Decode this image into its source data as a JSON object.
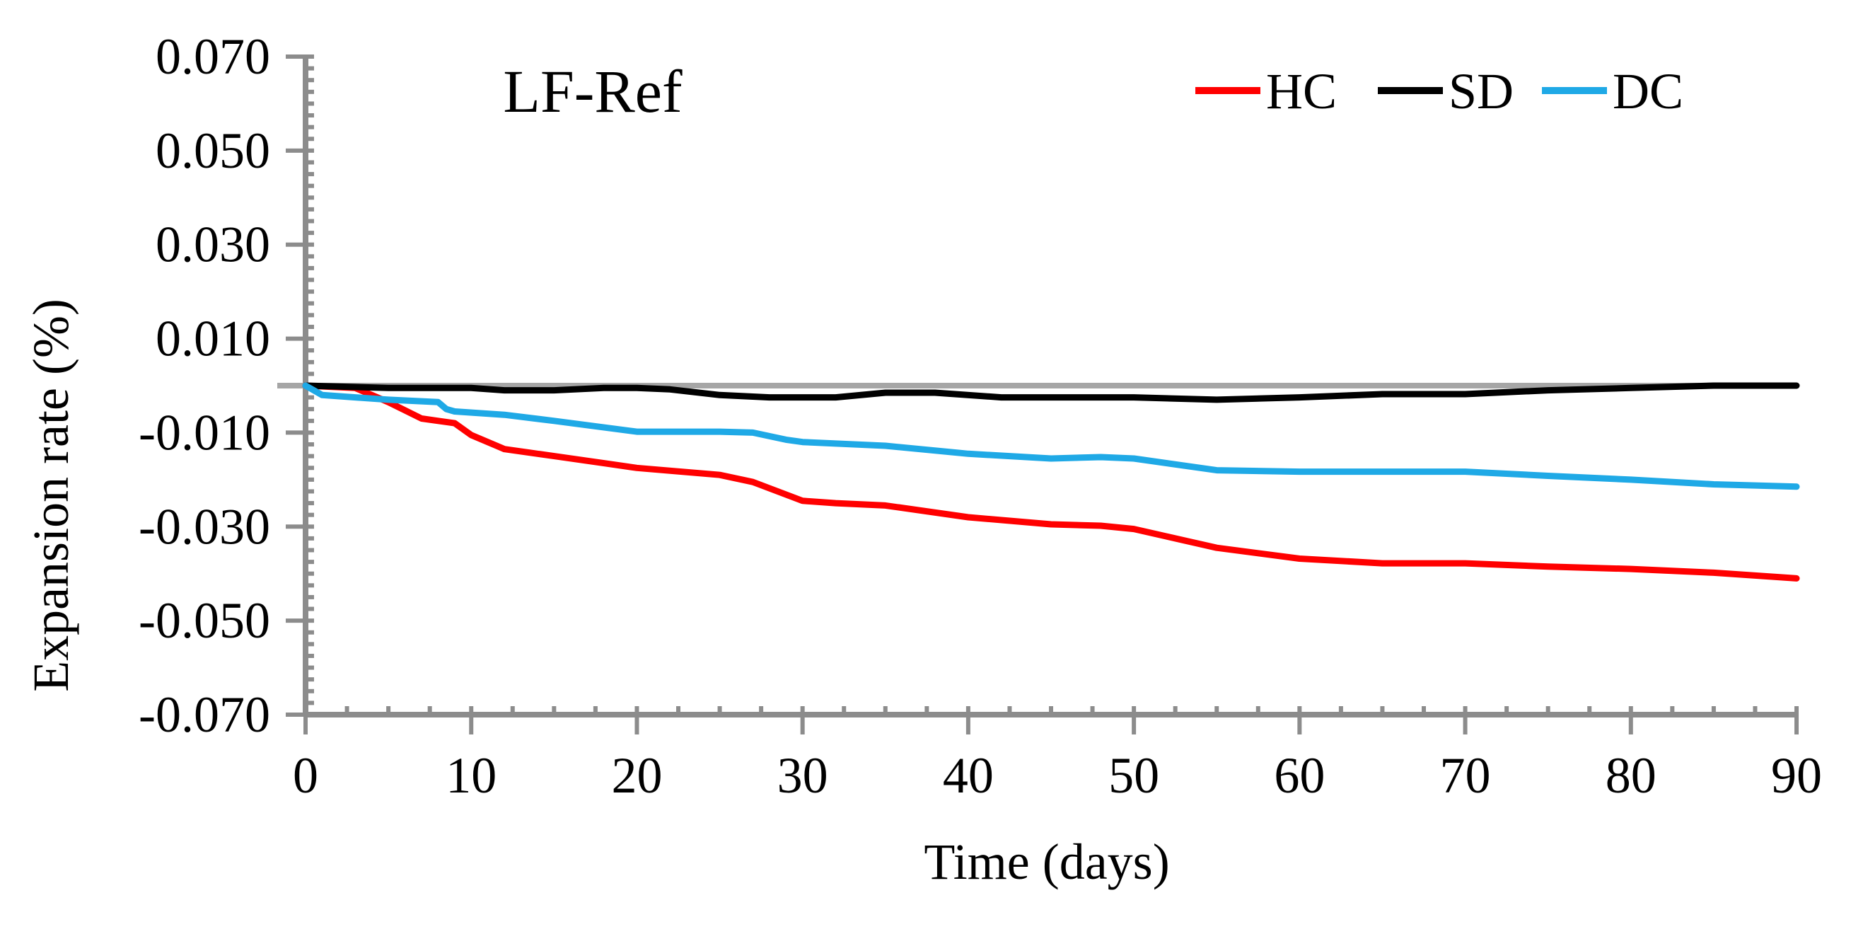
{
  "chart_data": {
    "type": "line",
    "title": "LF-Ref",
    "xlabel": "Time (days)",
    "ylabel": "Expansion rate (%)",
    "xlim": [
      0,
      90
    ],
    "ylim": [
      -0.07,
      0.07
    ],
    "x_ticks": [
      "0",
      "10",
      "20",
      "30",
      "40",
      "50",
      "60",
      "70",
      "80",
      "90"
    ],
    "y_ticks": [
      "0.070",
      "0.050",
      "0.030",
      "0.010",
      "-0.010",
      "-0.030",
      "-0.050",
      "-0.070"
    ],
    "grid": false,
    "legend_position": "top-right",
    "reference_line": {
      "y": 0.0,
      "color": "#a6a6a6"
    },
    "axis_color": "#8c8c8c",
    "series": [
      {
        "name": "HC",
        "color": "#ff0000",
        "points": [
          [
            0,
            0.0
          ],
          [
            3,
            -0.0005
          ],
          [
            5,
            -0.0035
          ],
          [
            7,
            -0.007
          ],
          [
            8,
            -0.0075
          ],
          [
            9,
            -0.008
          ],
          [
            10,
            -0.0105
          ],
          [
            12,
            -0.0135
          ],
          [
            15,
            -0.015
          ],
          [
            18,
            -0.0165
          ],
          [
            20,
            -0.0175
          ],
          [
            25,
            -0.019
          ],
          [
            27,
            -0.0205
          ],
          [
            30,
            -0.0245
          ],
          [
            32,
            -0.025
          ],
          [
            35,
            -0.0255
          ],
          [
            40,
            -0.028
          ],
          [
            45,
            -0.0295
          ],
          [
            48,
            -0.0298
          ],
          [
            50,
            -0.0305
          ],
          [
            55,
            -0.0345
          ],
          [
            60,
            -0.0368
          ],
          [
            65,
            -0.0378
          ],
          [
            70,
            -0.0378
          ],
          [
            75,
            -0.0385
          ],
          [
            80,
            -0.039
          ],
          [
            85,
            -0.0398
          ],
          [
            90,
            -0.041
          ]
        ]
      },
      {
        "name": "SD",
        "color": "#000000",
        "points": [
          [
            0,
            0.0
          ],
          [
            5,
            -0.0005
          ],
          [
            10,
            -0.0005
          ],
          [
            12,
            -0.001
          ],
          [
            15,
            -0.001
          ],
          [
            18,
            -0.0005
          ],
          [
            20,
            -0.0005
          ],
          [
            22,
            -0.0008
          ],
          [
            25,
            -0.002
          ],
          [
            28,
            -0.0025
          ],
          [
            32,
            -0.0025
          ],
          [
            35,
            -0.0015
          ],
          [
            38,
            -0.0015
          ],
          [
            42,
            -0.0025
          ],
          [
            45,
            -0.0025
          ],
          [
            50,
            -0.0025
          ],
          [
            55,
            -0.003
          ],
          [
            60,
            -0.0025
          ],
          [
            65,
            -0.0018
          ],
          [
            70,
            -0.0018
          ],
          [
            75,
            -0.001
          ],
          [
            80,
            -0.0005
          ],
          [
            85,
            0.0
          ],
          [
            90,
            0.0
          ]
        ]
      },
      {
        "name": "DC",
        "color": "#1fa9e6",
        "points": [
          [
            0,
            0.0
          ],
          [
            1,
            -0.002
          ],
          [
            3,
            -0.0025
          ],
          [
            5,
            -0.003
          ],
          [
            8,
            -0.0035
          ],
          [
            8.5,
            -0.005
          ],
          [
            9,
            -0.0055
          ],
          [
            12,
            -0.0062
          ],
          [
            15,
            -0.0075
          ],
          [
            20,
            -0.0098
          ],
          [
            25,
            -0.0098
          ],
          [
            27,
            -0.01
          ],
          [
            29,
            -0.0115
          ],
          [
            30,
            -0.012
          ],
          [
            35,
            -0.0128
          ],
          [
            40,
            -0.0145
          ],
          [
            45,
            -0.0155
          ],
          [
            48,
            -0.0152
          ],
          [
            50,
            -0.0155
          ],
          [
            55,
            -0.018
          ],
          [
            60,
            -0.0183
          ],
          [
            65,
            -0.0183
          ],
          [
            70,
            -0.0183
          ],
          [
            75,
            -0.0192
          ],
          [
            80,
            -0.02
          ],
          [
            85,
            -0.021
          ],
          [
            90,
            -0.0215
          ]
        ]
      }
    ]
  }
}
